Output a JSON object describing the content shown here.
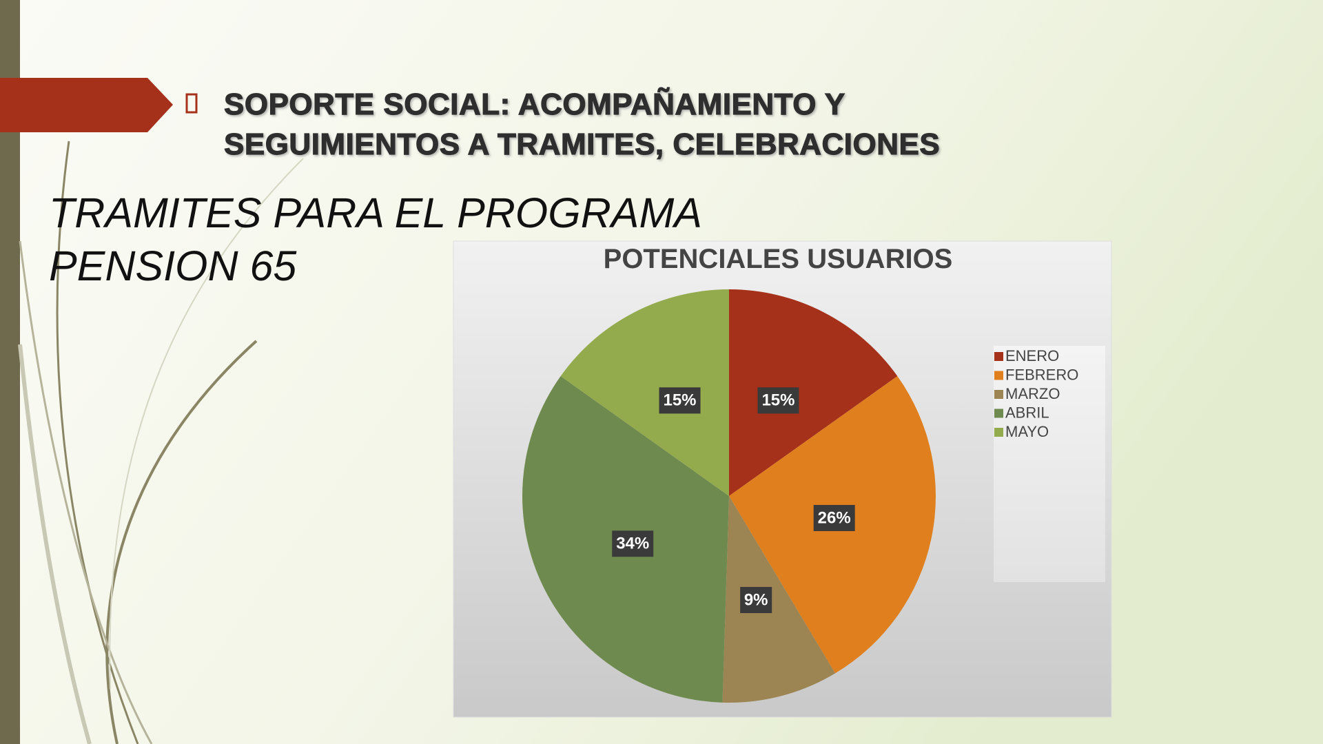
{
  "slide": {
    "title_lines": [
      "SOPORTE SOCIAL: ACOMPAÑAMIENTO Y",
      "SEGUIMIENTOS A TRAMITES, CELEBRACIONES"
    ],
    "heading_lines": [
      "TRAMITES PARA EL PROGRAMA",
      "PENSION 65"
    ]
  },
  "chart_data": {
    "type": "pie",
    "title": "POTENCIALES USUARIOS",
    "categories": [
      "ENERO",
      "FEBRERO",
      "MARZO",
      "ABRIL",
      "MAYO"
    ],
    "values": [
      15,
      26,
      9,
      34,
      15
    ],
    "value_labels": [
      "15%",
      "26%",
      "9%",
      "34%",
      "15%"
    ],
    "colors": [
      "#a5311a",
      "#e07f1e",
      "#9c8453",
      "#6f8a4e",
      "#93ab4d"
    ],
    "legend": "right"
  }
}
